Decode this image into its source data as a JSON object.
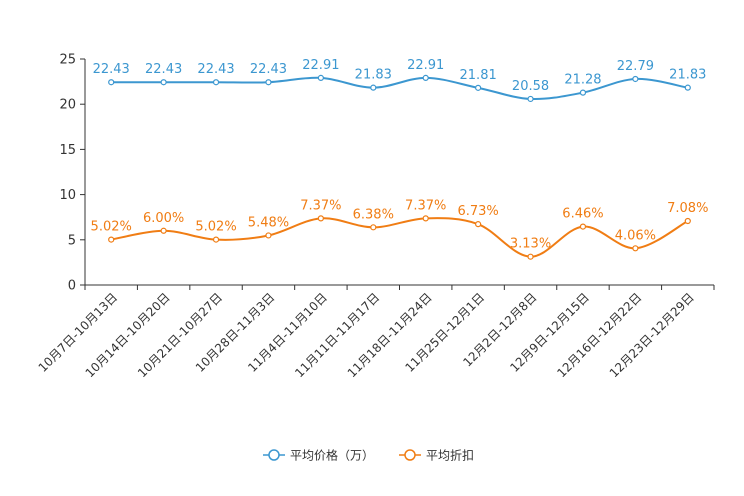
{
  "chart_data": {
    "type": "line",
    "title": "",
    "xlabel": "",
    "ylabel": "",
    "ylim": [
      0,
      25
    ],
    "yticks": [
      0,
      5,
      10,
      15,
      20,
      25
    ],
    "categories": [
      "10月7日-10月13日",
      "10月14日-10月20日",
      "10月21日-10月27日",
      "10月28日-11月3日",
      "11月4日-11月10日",
      "11月11日-11月17日",
      "11月18日-11月24日",
      "11月25日-12月1日",
      "12月2日-12月8日",
      "12月9日-12月15日",
      "12月16日-12月22日",
      "12月23日-12月29日"
    ],
    "series": [
      {
        "name": "平均价格（万）",
        "color": "#3c97d0",
        "values": [
          22.43,
          22.43,
          22.43,
          22.43,
          22.91,
          21.83,
          22.91,
          21.81,
          20.58,
          21.28,
          22.79,
          21.83
        ],
        "labels": [
          "22.43",
          "22.43",
          "22.43",
          "22.43",
          "22.91",
          "21.83",
          "22.91",
          "21.81",
          "20.58",
          "21.28",
          "22.79",
          "21.83"
        ]
      },
      {
        "name": "平均折扣",
        "color": "#f07d14",
        "values": [
          5.02,
          6.0,
          5.02,
          5.48,
          7.37,
          6.38,
          7.37,
          6.73,
          3.13,
          6.46,
          4.06,
          7.08
        ],
        "labels": [
          "5.02%",
          "6.00%",
          "5.02%",
          "5.48%",
          "7.37%",
          "6.38%",
          "7.37%",
          "6.73%",
          "3.13%",
          "6.46%",
          "4.06%",
          "7.08%"
        ]
      }
    ],
    "legend": "bottom-center",
    "grid": false
  }
}
